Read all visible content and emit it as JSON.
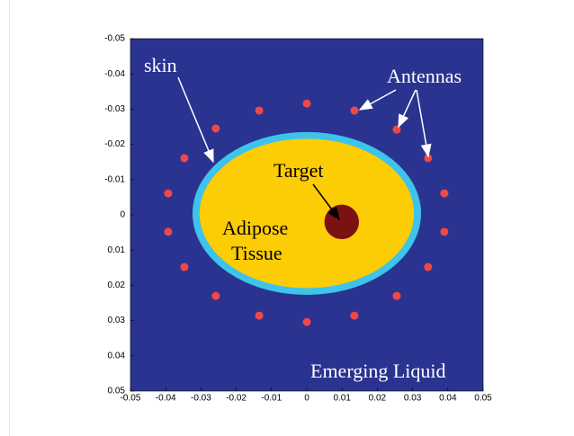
{
  "chart_data": {
    "type": "scatter",
    "xlim": [
      -0.05,
      0.05
    ],
    "ylim": [
      -0.05,
      0.05
    ],
    "y_reversed": true,
    "xticks": [
      -0.05,
      -0.04,
      -0.03,
      -0.02,
      -0.01,
      0,
      0.01,
      0.02,
      0.03,
      0.04,
      0.05
    ],
    "yticks": [
      -0.05,
      -0.04,
      -0.03,
      -0.02,
      -0.01,
      0,
      0.01,
      0.02,
      0.03,
      0.04,
      0.05
    ],
    "background": "#2a3390",
    "regions": [
      {
        "color": "#3ec3ea",
        "cx": 0,
        "cy": -0.0004,
        "rx": 0.0324,
        "ry": 0.0231
      },
      {
        "color": "#fccc05",
        "cx": 0,
        "cy": -0.0004,
        "rx": 0.0304,
        "ry": 0.0212
      },
      {
        "color": "#7a1212",
        "cx": 0.0099,
        "cy": 0.002,
        "rx": 0.0049,
        "ry": 0.0049
      }
    ],
    "series": [
      {
        "color": "#f04848",
        "x": [
          0,
          0.0135,
          -0.0135,
          0.0255,
          -0.0258,
          0.0344,
          -0.0347,
          0.039,
          -0.0393,
          0.039,
          -0.0393,
          0.0344,
          -0.0347,
          0.0255,
          -0.0258,
          0.0135,
          -0.0135,
          0
        ],
        "values": [
          -0.0316,
          -0.0296,
          -0.0296,
          -0.0242,
          -0.0245,
          -0.0161,
          -0.0161,
          -0.0061,
          -0.0061,
          0.0048,
          0.0048,
          0.0148,
          0.0148,
          0.023,
          0.023,
          0.0286,
          0.0286,
          0.0304
        ]
      }
    ],
    "annotations": [
      "skin",
      "Antennas",
      "Target",
      "Adipose",
      "Tissue",
      "Emerging Liquid"
    ]
  }
}
